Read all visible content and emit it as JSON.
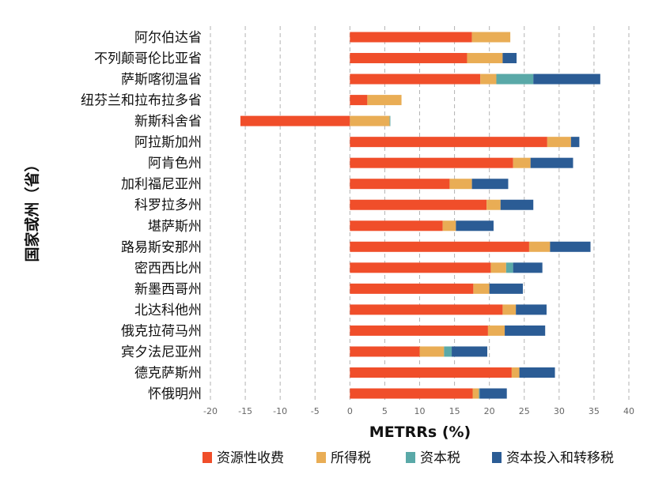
{
  "chart_data": {
    "type": "bar",
    "orientation": "horizontal",
    "stacked": true,
    "xlabel": "METRRs (%)",
    "ylabel": "国家或州（省）",
    "xlim": [
      -20,
      40
    ],
    "xticks": [
      -20,
      -15,
      -10,
      -5,
      0,
      5,
      10,
      15,
      20,
      25,
      30,
      35,
      40
    ],
    "xtick_labels": [
      "-20",
      "-15",
      "-10",
      "-5",
      "0",
      "5",
      "10",
      "15",
      "20",
      "25",
      "30",
      "35",
      "40"
    ],
    "grid": "vertical dashed",
    "legend_position": "bottom",
    "categories": [
      "阿尔伯达省",
      "不列颠哥伦比亚省",
      "萨斯喀彻温省",
      "纽芬兰和拉布拉多省",
      "新斯科舍省",
      "阿拉斯加州",
      "阿肯色州",
      "加利福尼亚州",
      "科罗拉多州",
      "堪萨斯州",
      "路易斯安那州",
      "密西西比州",
      "新墨西哥州",
      "北达科他州",
      "俄克拉荷马州",
      "宾夕法尼亚州",
      "德克萨斯州",
      "怀俄明州"
    ],
    "series": [
      {
        "name": "资源性收费",
        "color": "#f04e2a",
        "values": [
          17.5,
          16.8,
          18.7,
          2.5,
          -15.7,
          28.3,
          23.4,
          14.3,
          19.6,
          13.3,
          25.7,
          20.2,
          17.7,
          21.9,
          19.8,
          10.0,
          23.2,
          17.6
        ]
      },
      {
        "name": "所得税",
        "color": "#e9ad55",
        "values": [
          5.5,
          5.1,
          2.3,
          4.9,
          5.7,
          3.4,
          2.5,
          3.2,
          2.0,
          1.9,
          3.0,
          2.2,
          2.3,
          1.9,
          2.4,
          3.5,
          1.1,
          0.9
        ]
      },
      {
        "name": "资本税",
        "color": "#5aa9a8",
        "values": [
          0,
          0,
          5.3,
          0,
          0.1,
          0,
          0,
          0,
          0,
          0,
          0,
          1.0,
          0,
          0,
          0,
          1.1,
          0,
          0.1
        ]
      },
      {
        "name": "资本投入和转移税",
        "color": "#2b5c95",
        "values": [
          0,
          2.0,
          9.6,
          0,
          0,
          1.2,
          6.1,
          5.2,
          4.7,
          5.4,
          5.8,
          4.2,
          4.8,
          4.4,
          5.8,
          5.1,
          5.1,
          3.9
        ]
      }
    ]
  }
}
